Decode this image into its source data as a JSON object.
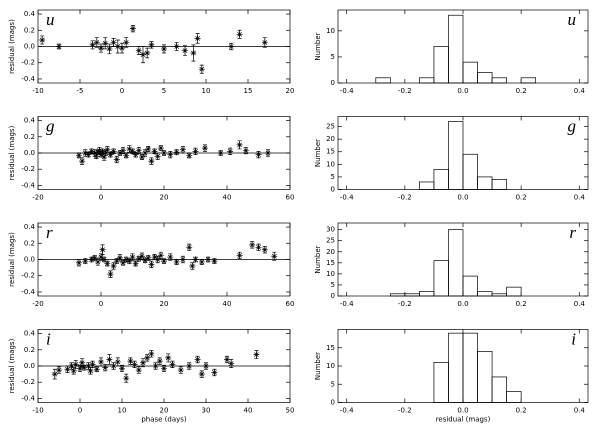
{
  "chart_data": [
    {
      "type": "scatter",
      "label": "u",
      "ylabel": "residual (mags)",
      "x": [
        -9.5,
        -7.5,
        -3.5,
        -3,
        -2.5,
        -2,
        -1.5,
        -1,
        -0.5,
        0,
        0.5,
        1.3,
        2,
        2.5,
        3,
        3.5,
        5,
        6.5,
        7.5,
        8.5,
        9,
        9.5,
        13,
        14,
        17
      ],
      "values": [
        0.08,
        0.0,
        0.02,
        0.05,
        -0.02,
        0.04,
        -0.03,
        0.05,
        0.0,
        -0.02,
        0.05,
        0.22,
        -0.05,
        -0.1,
        -0.08,
        0.02,
        -0.03,
        0.0,
        -0.05,
        -0.08,
        0.1,
        -0.28,
        0.0,
        0.15,
        0.05
      ],
      "errors": [
        0.05,
        0.03,
        0.05,
        0.06,
        0.05,
        0.07,
        0.06,
        0.05,
        0.08,
        0.06,
        0.06,
        0.04,
        0.05,
        0.1,
        0.06,
        0.04,
        0.05,
        0.05,
        0.06,
        0.1,
        0.06,
        0.05,
        0.04,
        0.05,
        0.06
      ],
      "xlim": [
        -10,
        20
      ],
      "xticks": [
        -10,
        -5,
        0,
        5,
        10,
        15,
        20
      ],
      "ylim": [
        -0.45,
        0.45
      ],
      "yticks": [
        -0.4,
        -0.2,
        {
          "value": 0,
          "label": "0.0"
        },
        0.2,
        0.4
      ]
    },
    {
      "type": "histogram",
      "label": "u",
      "ylabel": "Number",
      "bins": [
        -0.3,
        -0.25,
        -0.2,
        -0.15,
        -0.1,
        -0.05,
        0,
        0.05,
        0.1,
        0.15,
        0.2,
        0.25
      ],
      "values": [
        1,
        0,
        0,
        1,
        7,
        13,
        4,
        2,
        1,
        0,
        1
      ],
      "xlim": [
        -0.43,
        0.43
      ],
      "xticks": [
        -0.4,
        -0.2,
        {
          "value": 0,
          "label": "0.0"
        },
        0.2,
        0.4
      ],
      "ylim": [
        0,
        14
      ],
      "yticks": [
        0,
        5,
        10
      ]
    },
    {
      "type": "scatter",
      "label": "g",
      "ylabel": "residual (mags)",
      "x": [
        -7,
        -6,
        -5,
        -4,
        -3,
        -2,
        -1.5,
        -1,
        -0.5,
        0,
        0.5,
        1,
        1.5,
        2,
        3,
        4,
        5,
        6,
        7,
        8,
        9,
        10,
        11,
        12,
        13,
        14,
        15,
        16,
        17,
        18,
        19,
        20,
        22,
        24,
        26,
        28,
        30,
        33,
        38,
        41,
        44,
        46,
        50,
        53
      ],
      "values": [
        -0.03,
        -0.1,
        0.0,
        -0.02,
        0.02,
        0.0,
        -0.04,
        0.01,
        0.03,
        -0.02,
        0.02,
        -0.05,
        0.0,
        0.04,
        -0.02,
        0.02,
        -0.08,
        0.0,
        0.03,
        -0.03,
        0.05,
        0.02,
        -0.02,
        0.03,
        -0.05,
        0.0,
        0.05,
        -0.1,
        0.02,
        -0.04,
        0.06,
        0.0,
        -0.02,
        0.01,
        0.04,
        -0.03,
        0.02,
        0.06,
        0.0,
        0.02,
        0.1,
        0.03,
        -0.02,
        0.0
      ],
      "errors": [
        0.03,
        0.04,
        0.04,
        0.03,
        0.03,
        0.04,
        0.03,
        0.03,
        0.04,
        0.03,
        0.03,
        0.04,
        0.03,
        0.04,
        0.03,
        0.03,
        0.04,
        0.03,
        0.04,
        0.03,
        0.04,
        0.03,
        0.03,
        0.04,
        0.03,
        0.04,
        0.03,
        0.04,
        0.03,
        0.04,
        0.03,
        0.03,
        0.04,
        0.03,
        0.04,
        0.03,
        0.04,
        0.04,
        0.03,
        0.04,
        0.05,
        0.04,
        0.04,
        0.04
      ],
      "xlim": [
        -20,
        60
      ],
      "xticks": [
        -20,
        0,
        20,
        40,
        60
      ],
      "ylim": [
        -0.45,
        0.45
      ],
      "yticks": [
        -0.4,
        -0.2,
        {
          "value": 0,
          "label": "0.0"
        },
        0.2,
        0.4
      ]
    },
    {
      "type": "histogram",
      "label": "g",
      "ylabel": "Number",
      "bins": [
        -0.15,
        -0.1,
        -0.05,
        0,
        0.05,
        0.1,
        0.15
      ],
      "values": [
        3,
        8,
        27,
        14,
        5,
        4
      ],
      "xlim": [
        -0.43,
        0.43
      ],
      "xticks": [
        -0.4,
        -0.2,
        {
          "value": 0,
          "label": "0.0"
        },
        0.2,
        0.4
      ],
      "ylim": [
        0,
        29
      ],
      "yticks": [
        0,
        5,
        10,
        15,
        20,
        25
      ]
    },
    {
      "type": "scatter",
      "label": "r",
      "ylabel": "residual (mags)",
      "x": [
        -7,
        -5,
        -3,
        -2,
        -1,
        0,
        0.5,
        1,
        2,
        3,
        4,
        5,
        6,
        7,
        8,
        9,
        10,
        11,
        12,
        13,
        14,
        15,
        16,
        17,
        18,
        19,
        20,
        22,
        24,
        26,
        28,
        29,
        30,
        32,
        34,
        36,
        44,
        48,
        50,
        52,
        55
      ],
      "values": [
        -0.04,
        -0.02,
        0.0,
        0.02,
        -0.03,
        0.03,
        0.12,
        0.0,
        -0.05,
        -0.18,
        -0.08,
        -0.02,
        0.02,
        -0.04,
        0.0,
        -0.02,
        0.03,
        -0.05,
        0.01,
        0.04,
        -0.01,
        0.02,
        -0.06,
        0.03,
        0.0,
        0.05,
        -0.02,
        0.03,
        -0.03,
        0.0,
        0.15,
        -0.08,
        0.0,
        -0.03,
        0.0,
        -0.02,
        0.05,
        0.18,
        0.15,
        0.12,
        0.04
      ],
      "errors": [
        0.04,
        0.03,
        0.03,
        0.03,
        0.04,
        0.04,
        0.06,
        0.03,
        0.03,
        0.04,
        0.04,
        0.03,
        0.04,
        0.03,
        0.03,
        0.03,
        0.04,
        0.03,
        0.03,
        0.04,
        0.03,
        0.03,
        0.04,
        0.03,
        0.04,
        0.04,
        0.03,
        0.04,
        0.03,
        0.04,
        0.04,
        0.04,
        0.03,
        0.03,
        0.03,
        0.03,
        0.04,
        0.04,
        0.04,
        0.04,
        0.05
      ],
      "xlim": [
        -20,
        60
      ],
      "xticks": [
        -20,
        0,
        20,
        40,
        60
      ],
      "ylim": [
        -0.45,
        0.45
      ],
      "yticks": [
        -0.4,
        -0.2,
        {
          "value": 0,
          "label": "0.0"
        },
        0.2,
        0.4
      ]
    },
    {
      "type": "histogram",
      "label": "r",
      "ylabel": "Number",
      "bins": [
        -0.25,
        -0.2,
        -0.15,
        -0.1,
        -0.05,
        0,
        0.05,
        0.1,
        0.15,
        0.2
      ],
      "values": [
        1,
        1,
        2,
        16,
        30,
        9,
        2,
        1,
        4
      ],
      "xlim": [
        -0.43,
        0.43
      ],
      "xticks": [
        -0.4,
        -0.2,
        {
          "value": 0,
          "label": "0.0"
        },
        0.2,
        0.4
      ],
      "ylim": [
        0,
        33
      ],
      "yticks": [
        0,
        5,
        10,
        15,
        20,
        25,
        30
      ]
    },
    {
      "type": "scatter",
      "label": "i",
      "ylabel": "residual (mags)",
      "xlabel": "phase (days)",
      "x": [
        -6,
        -5,
        -3,
        -2,
        -1.5,
        -1,
        0,
        0.5,
        1,
        2,
        2.5,
        3,
        4,
        5,
        6,
        7,
        8,
        9,
        10,
        11,
        12,
        13,
        14,
        15,
        16,
        17,
        18,
        19,
        20,
        21,
        22,
        24,
        26,
        28,
        29,
        30,
        32,
        35,
        36,
        42
      ],
      "values": [
        -0.1,
        -0.05,
        -0.04,
        0.0,
        -0.06,
        0.02,
        -0.03,
        0.04,
        -0.02,
        0.0,
        -0.06,
        0.02,
        -0.04,
        0.05,
        -0.02,
        0.08,
        0.0,
        0.05,
        -0.03,
        -0.15,
        0.06,
        0.02,
        -0.05,
        0.04,
        0.1,
        0.15,
        0.0,
        0.06,
        -0.03,
        0.1,
        0.02,
        -0.05,
        0.0,
        0.08,
        -0.1,
        0.0,
        -0.08,
        0.08,
        0.03,
        0.14
      ],
      "errors": [
        0.06,
        0.04,
        0.04,
        0.04,
        0.04,
        0.05,
        0.04,
        0.05,
        0.03,
        0.04,
        0.04,
        0.04,
        0.03,
        0.05,
        0.04,
        0.06,
        0.04,
        0.05,
        0.04,
        0.05,
        0.04,
        0.04,
        0.04,
        0.05,
        0.04,
        0.04,
        0.04,
        0.04,
        0.04,
        0.05,
        0.04,
        0.04,
        0.04,
        0.04,
        0.04,
        0.04,
        0.04,
        0.04,
        0.05,
        0.05
      ],
      "xlim": [
        -10,
        50
      ],
      "xticks": [
        -10,
        0,
        10,
        20,
        30,
        40,
        50
      ],
      "ylim": [
        -0.45,
        0.45
      ],
      "yticks": [
        -0.4,
        -0.2,
        {
          "value": 0,
          "label": "0.0"
        },
        0.2,
        0.4
      ]
    },
    {
      "type": "histogram",
      "label": "i",
      "ylabel": "Number",
      "xlabel": "residual (mags)",
      "bins": [
        -0.1,
        -0.05,
        0,
        0.05,
        0.1,
        0.15,
        0.2
      ],
      "values": [
        11,
        19,
        19,
        14,
        7,
        3
      ],
      "xlim": [
        -0.43,
        0.43
      ],
      "xticks": [
        -0.4,
        -0.2,
        {
          "value": 0,
          "label": "0.0"
        },
        0.2,
        0.4
      ],
      "ylim": [
        0,
        20
      ],
      "yticks": [
        0,
        5,
        10,
        15
      ]
    }
  ]
}
